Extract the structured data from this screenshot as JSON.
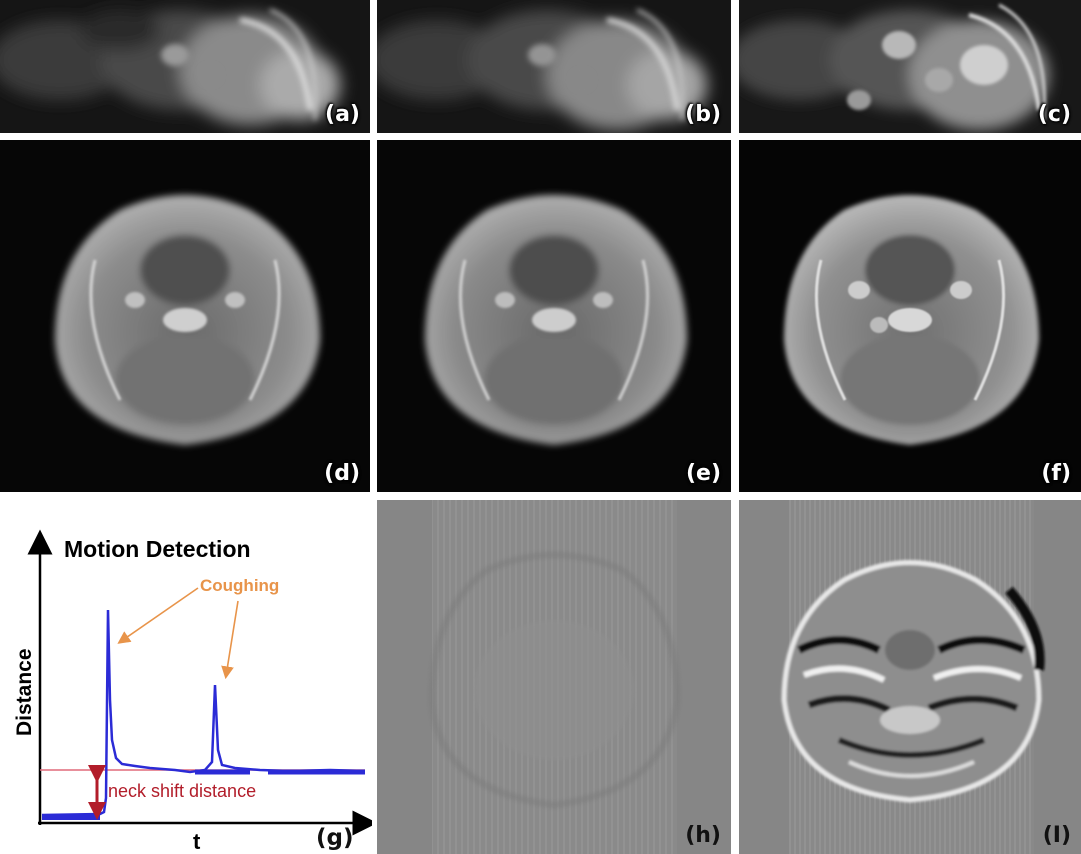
{
  "panels": {
    "a": "(a)",
    "b": "(b)",
    "c": "(c)",
    "d": "(d)",
    "e": "(e)",
    "f": "(f)",
    "g": "(g)",
    "h": "(h)",
    "i": "(I)"
  },
  "graph": {
    "title": "Motion Detection",
    "ylabel": "Distance",
    "xlabel": "t",
    "annotation_coughing": "Coughing",
    "annotation_shift": "neck shift distance",
    "colors": {
      "signal": "#2b2bd6",
      "threshold": "#e06a7a",
      "coughing": "#e8944a",
      "shift": "#b21d2a"
    }
  }
}
